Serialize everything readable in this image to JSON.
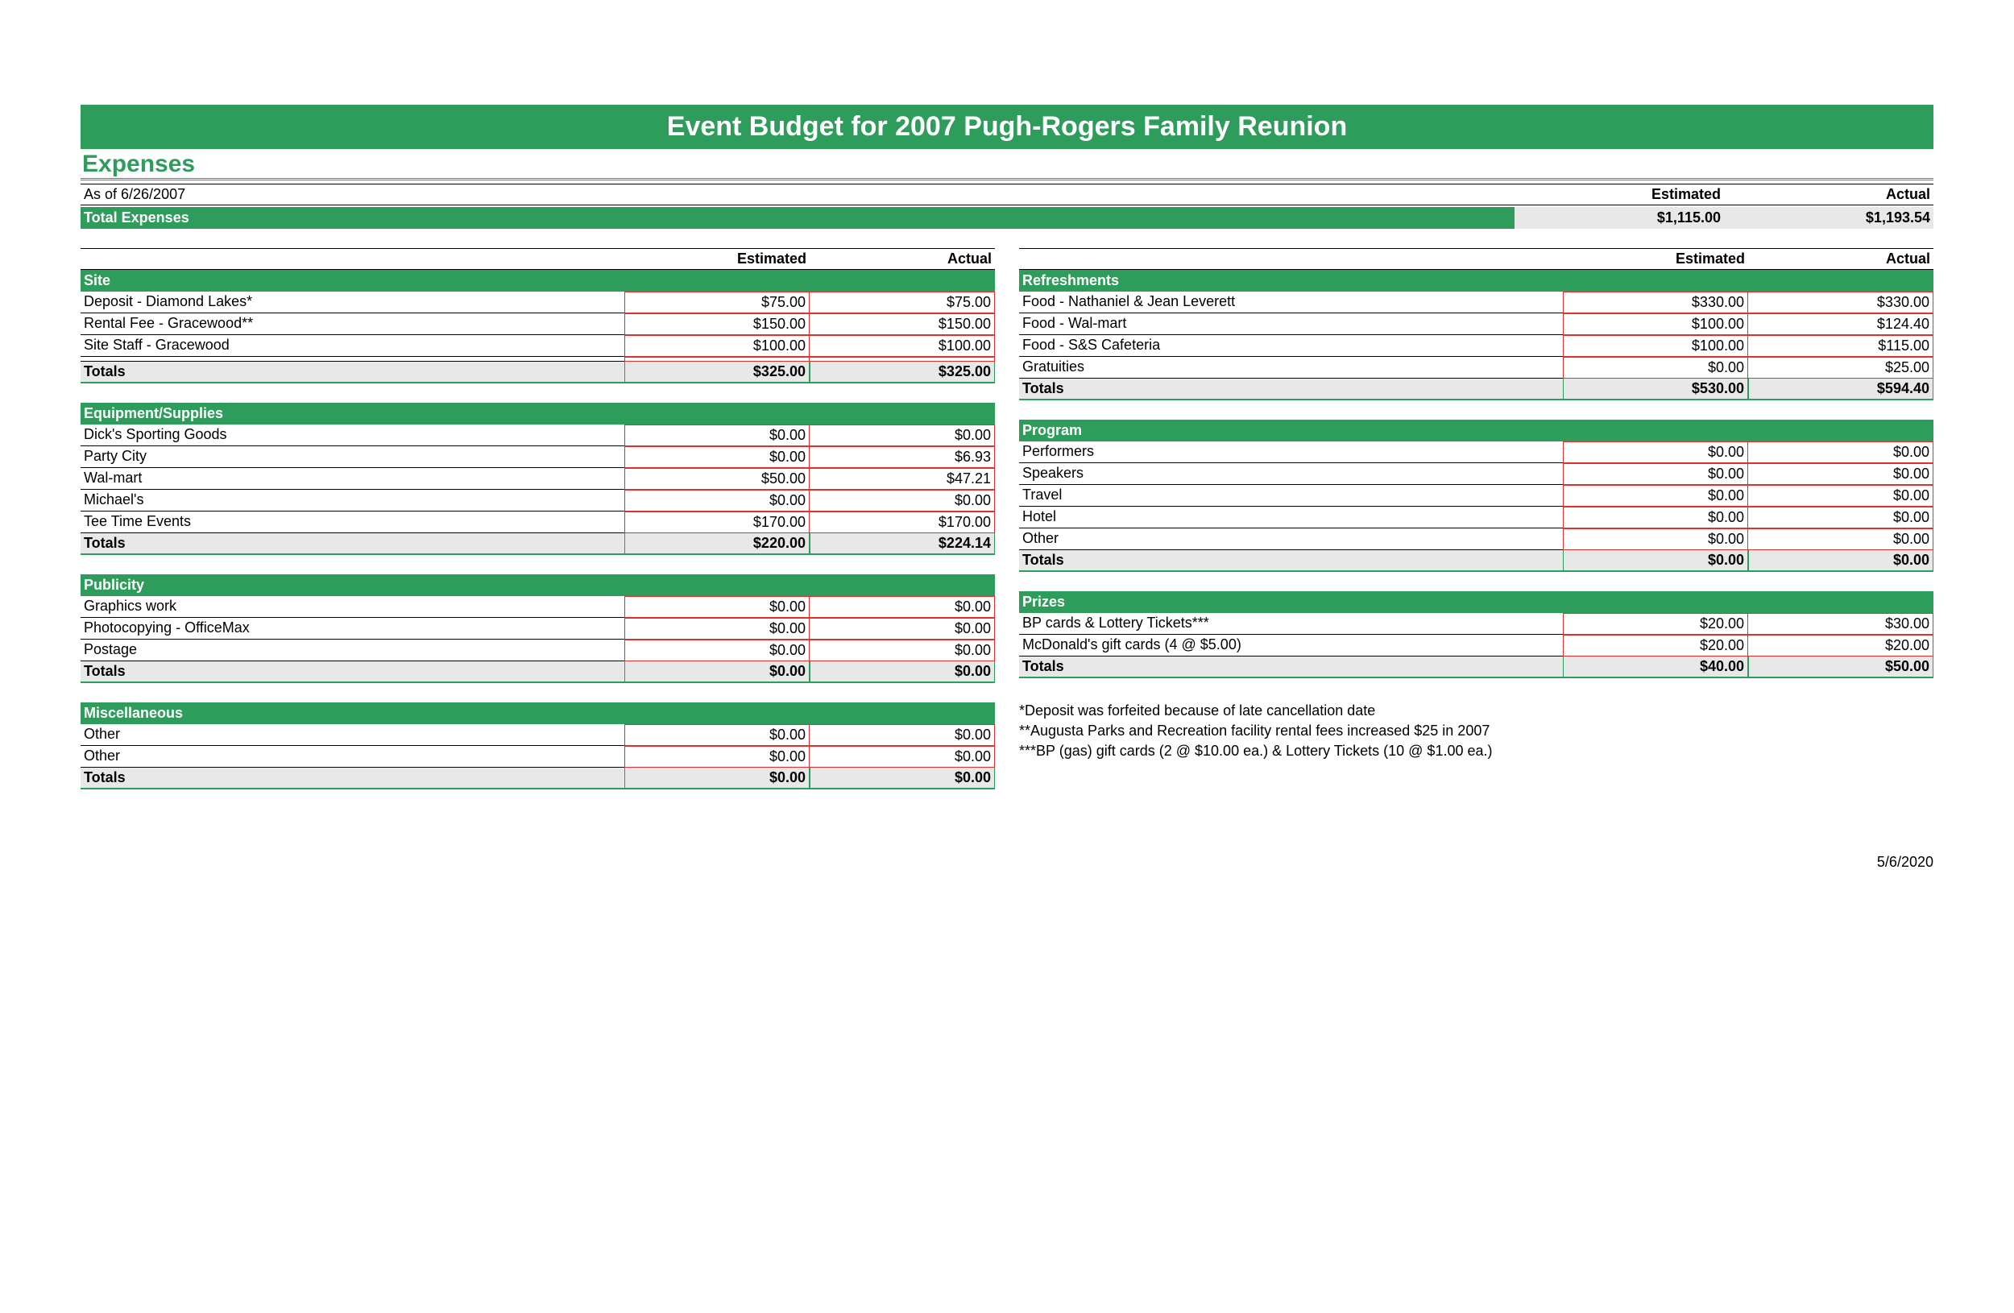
{
  "title": "Event Budget for 2007 Pugh-Rogers Family Reunion",
  "section_title": "Expenses",
  "as_of": "As of 6/26/2007",
  "summary_headers": {
    "estimated": "Estimated",
    "actual": "Actual"
  },
  "total_expenses_label": "Total Expenses",
  "total_expenses": {
    "estimated": "$1,115.00",
    "actual": "$1,193.54"
  },
  "col_headers": {
    "estimated": "Estimated",
    "actual": "Actual"
  },
  "totals_label": "Totals",
  "left_categories": [
    {
      "name": "Site",
      "items": [
        {
          "label": "Deposit - Diamond Lakes*",
          "est": "$75.00",
          "act": "$75.00"
        },
        {
          "label": "Rental Fee - Gracewood**",
          "est": "$150.00",
          "act": "$150.00"
        },
        {
          "label": "Site Staff - Gracewood",
          "est": "$100.00",
          "act": "$100.00"
        },
        {
          "label": "",
          "est": "",
          "act": ""
        }
      ],
      "totals": {
        "est": "$325.00",
        "act": "$325.00"
      }
    },
    {
      "name": "Equipment/Supplies",
      "items": [
        {
          "label": "Dick's Sporting Goods",
          "est": "$0.00",
          "act": "$0.00"
        },
        {
          "label": "Party City",
          "est": "$0.00",
          "act": "$6.93"
        },
        {
          "label": "Wal-mart",
          "est": "$50.00",
          "act": "$47.21"
        },
        {
          "label": "Michael's",
          "est": "$0.00",
          "act": "$0.00"
        },
        {
          "label": "Tee Time Events",
          "est": "$170.00",
          "act": "$170.00"
        }
      ],
      "totals": {
        "est": "$220.00",
        "act": "$224.14"
      }
    },
    {
      "name": "Publicity",
      "items": [
        {
          "label": "Graphics work",
          "est": "$0.00",
          "act": "$0.00"
        },
        {
          "label": "Photocopying - OfficeMax",
          "est": "$0.00",
          "act": "$0.00"
        },
        {
          "label": "Postage",
          "est": "$0.00",
          "act": "$0.00"
        }
      ],
      "totals": {
        "est": "$0.00",
        "act": "$0.00"
      }
    },
    {
      "name": "Miscellaneous",
      "items": [
        {
          "label": "Other",
          "est": "$0.00",
          "act": "$0.00"
        },
        {
          "label": "Other",
          "est": "$0.00",
          "act": "$0.00"
        }
      ],
      "totals": {
        "est": "$0.00",
        "act": "$0.00"
      }
    }
  ],
  "right_categories": [
    {
      "name": "Refreshments",
      "items": [
        {
          "label": "Food - Nathaniel & Jean Leverett",
          "est": "$330.00",
          "act": "$330.00"
        },
        {
          "label": "Food - Wal-mart",
          "est": "$100.00",
          "act": "$124.40"
        },
        {
          "label": "Food - S&S Cafeteria",
          "est": "$100.00",
          "act": "$115.00"
        },
        {
          "label": "Gratuities",
          "est": "$0.00",
          "act": "$25.00"
        }
      ],
      "totals": {
        "est": "$530.00",
        "act": "$594.40"
      }
    },
    {
      "name": "Program",
      "items": [
        {
          "label": "Performers",
          "est": "$0.00",
          "act": "$0.00"
        },
        {
          "label": "Speakers",
          "est": "$0.00",
          "act": "$0.00"
        },
        {
          "label": "Travel",
          "est": "$0.00",
          "act": "$0.00"
        },
        {
          "label": "Hotel",
          "est": "$0.00",
          "act": "$0.00"
        },
        {
          "label": "Other",
          "est": "$0.00",
          "act": "$0.00"
        }
      ],
      "totals": {
        "est": "$0.00",
        "act": "$0.00"
      }
    },
    {
      "name": "Prizes",
      "items": [
        {
          "label": "BP cards & Lottery Tickets***",
          "est": "$20.00",
          "act": "$30.00"
        },
        {
          "label": "McDonald's gift cards (4 @ $5.00)",
          "est": "$20.00",
          "act": "$20.00"
        }
      ],
      "totals": {
        "est": "$40.00",
        "act": "$50.00"
      }
    }
  ],
  "notes": [
    "*Deposit was forfeited because of late cancellation date",
    "**Augusta Parks and Recreation facility rental fees increased $25 in 2007",
    "***BP (gas) gift cards (2 @ $10.00 ea.) & Lottery Tickets (10 @ $1.00 ea.)"
  ],
  "footer_date": "5/6/2020"
}
